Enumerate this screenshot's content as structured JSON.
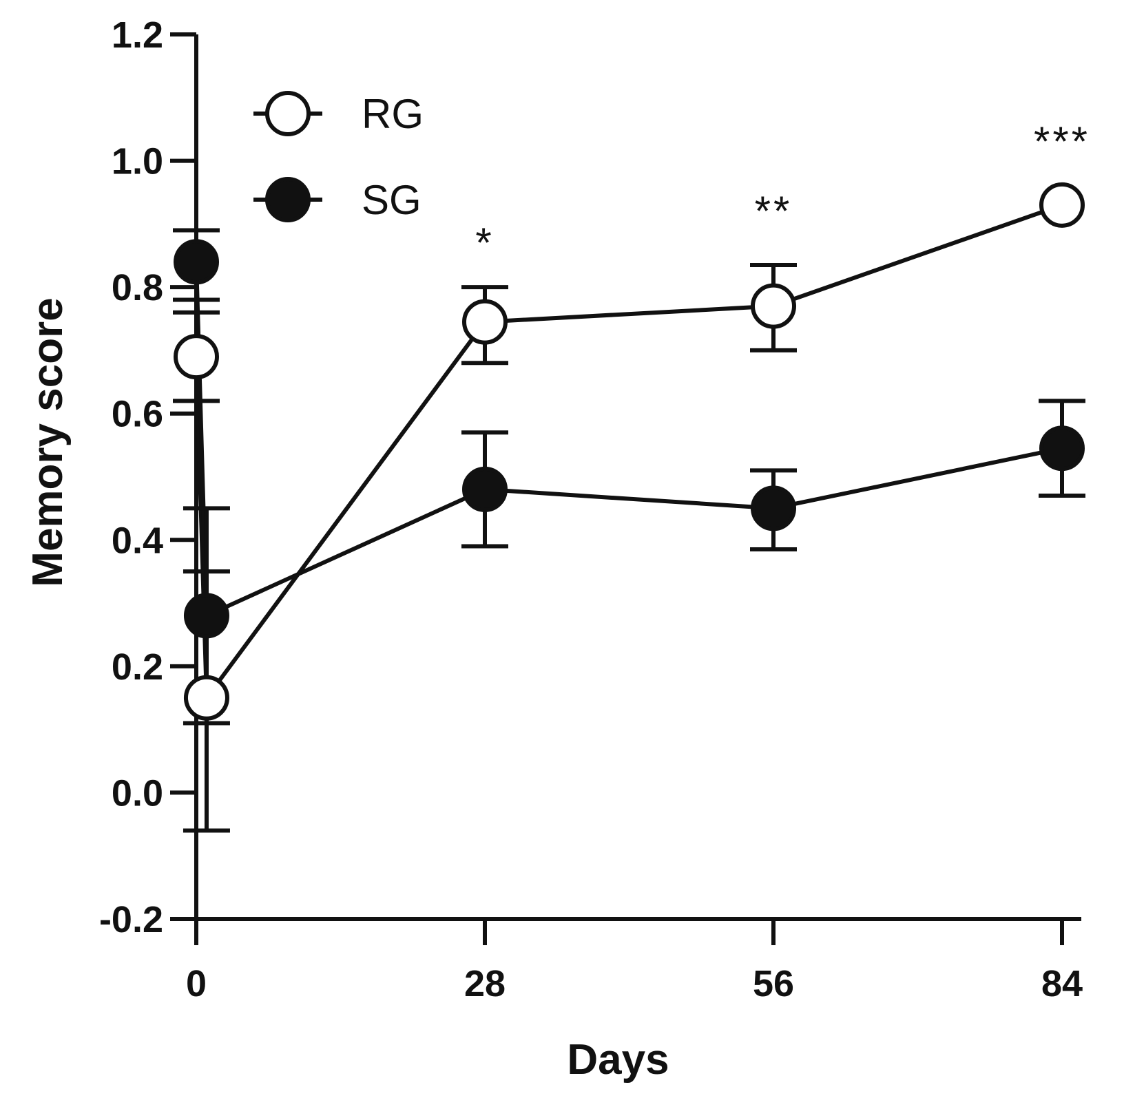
{
  "chart_data": {
    "type": "line",
    "title": "",
    "xlabel": "Days",
    "ylabel": "Memory score",
    "xlim": [
      0,
      84
    ],
    "ylim": [
      -0.2,
      1.2
    ],
    "xticks": [
      0,
      28,
      56,
      84
    ],
    "xtick_labels": [
      "0",
      "28",
      "56",
      "84"
    ],
    "yticks": [
      -0.2,
      0.0,
      0.2,
      0.4,
      0.6,
      0.8,
      1.0,
      1.2
    ],
    "ytick_labels": [
      "-0.2",
      "0.0",
      "0.2",
      "0.4",
      "0.6",
      "0.8",
      "1.0",
      "1.2"
    ],
    "legend_position": "top-left",
    "grid": false,
    "series": [
      {
        "name": "RG",
        "marker": "open-circle",
        "x": [
          0,
          1,
          28,
          56,
          84
        ],
        "y": [
          0.69,
          0.15,
          0.745,
          0.77,
          0.93
        ],
        "err_low": [
          0.62,
          -0.06,
          0.68,
          0.7,
          0.93
        ],
        "err_high": [
          0.76,
          0.35,
          0.8,
          0.835,
          0.93
        ]
      },
      {
        "name": "SG",
        "marker": "filled-circle",
        "x": [
          0,
          1,
          28,
          56,
          84
        ],
        "y": [
          0.84,
          0.28,
          0.48,
          0.45,
          0.545
        ],
        "err_low": [
          0.78,
          0.11,
          0.39,
          0.385,
          0.47
        ],
        "err_high": [
          0.89,
          0.45,
          0.57,
          0.51,
          0.62
        ]
      }
    ],
    "annotations": [
      {
        "x": 28,
        "y": 0.87,
        "text": "*"
      },
      {
        "x": 56,
        "y": 0.92,
        "text": "**"
      },
      {
        "x": 84,
        "y": 1.03,
        "text": "***"
      }
    ]
  },
  "colors": {
    "ink": "#111111",
    "background": "#ffffff"
  }
}
